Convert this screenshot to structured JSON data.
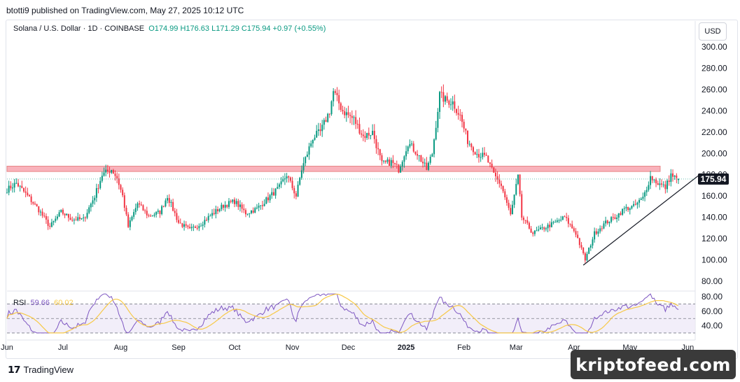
{
  "header": {
    "publisher_line": "btotti9 published on TradingView.com, May 27, 2025 10:12 UTC"
  },
  "legend": {
    "symbol": "Solana / U.S. Dollar · 1D · COINBASE",
    "ohlc": "O174.99  H176.63  L171.29  C175.94  +0.97 (+0.55%)"
  },
  "currency_button": "USD",
  "price_label": "175.94",
  "rsi_legend": {
    "name": "RSI",
    "rsi": "59.66",
    "ma": "60.02"
  },
  "footer": {
    "brand": "TradingView",
    "watermark": "kriptofeed.com"
  },
  "colors": {
    "up": "#089981",
    "down": "#f23645",
    "zone": "#f8a5b0",
    "rsi": "#7e57c2",
    "rsi_ma": "#f7c948",
    "rsi_band": "#ede7f6"
  },
  "chart_data": {
    "type": "candlestick",
    "title": "Solana / U.S. Dollar · 1D · COINBASE",
    "y_ticks": [
      80,
      100,
      120,
      140,
      160,
      180,
      200,
      220,
      240,
      260,
      280,
      300
    ],
    "ylim": [
      72,
      306
    ],
    "x_ticks": [
      "Jun",
      "Jul",
      "Aug",
      "Sep",
      "Oct",
      "Nov",
      "Dec",
      "2025",
      "Feb",
      "Mar",
      "Apr",
      "May",
      "Jun"
    ],
    "x_range": [
      "2024-06-01",
      "2025-06-05"
    ],
    "resistance_zone": [
      183,
      188
    ],
    "trendline": {
      "from": {
        "date": "2025-04-06",
        "price": 95
      },
      "to": {
        "date": "2025-06-01",
        "price": 179
      }
    },
    "close_path": [
      {
        "date": "2024-06-01",
        "close": 166
      },
      {
        "date": "2024-06-06",
        "close": 172
      },
      {
        "date": "2024-06-12",
        "close": 160
      },
      {
        "date": "2024-06-18",
        "close": 147
      },
      {
        "date": "2024-06-24",
        "close": 131
      },
      {
        "date": "2024-06-30",
        "close": 145
      },
      {
        "date": "2024-07-06",
        "close": 138
      },
      {
        "date": "2024-07-12",
        "close": 138
      },
      {
        "date": "2024-07-18",
        "close": 160
      },
      {
        "date": "2024-07-22",
        "close": 180
      },
      {
        "date": "2024-07-27",
        "close": 185
      },
      {
        "date": "2024-07-30",
        "close": 177
      },
      {
        "date": "2024-08-02",
        "close": 160
      },
      {
        "date": "2024-08-05",
        "close": 131
      },
      {
        "date": "2024-08-10",
        "close": 153
      },
      {
        "date": "2024-08-16",
        "close": 141
      },
      {
        "date": "2024-08-22",
        "close": 145
      },
      {
        "date": "2024-08-26",
        "close": 160
      },
      {
        "date": "2024-09-01",
        "close": 135
      },
      {
        "date": "2024-09-07",
        "close": 128
      },
      {
        "date": "2024-09-13",
        "close": 134
      },
      {
        "date": "2024-09-19",
        "close": 143
      },
      {
        "date": "2024-09-25",
        "close": 151
      },
      {
        "date": "2024-10-01",
        "close": 155
      },
      {
        "date": "2024-10-07",
        "close": 144
      },
      {
        "date": "2024-10-13",
        "close": 148
      },
      {
        "date": "2024-10-19",
        "close": 158
      },
      {
        "date": "2024-10-25",
        "close": 168
      },
      {
        "date": "2024-10-29",
        "close": 180
      },
      {
        "date": "2024-11-03",
        "close": 160
      },
      {
        "date": "2024-11-06",
        "close": 185
      },
      {
        "date": "2024-11-12",
        "close": 215
      },
      {
        "date": "2024-11-16",
        "close": 220
      },
      {
        "date": "2024-11-21",
        "close": 240
      },
      {
        "date": "2024-11-23",
        "close": 258
      },
      {
        "date": "2024-11-28",
        "close": 240
      },
      {
        "date": "2024-12-04",
        "close": 232
      },
      {
        "date": "2024-12-09",
        "close": 216
      },
      {
        "date": "2024-12-14",
        "close": 220
      },
      {
        "date": "2024-12-19",
        "close": 190
      },
      {
        "date": "2024-12-24",
        "close": 192
      },
      {
        "date": "2024-12-28",
        "close": 185
      },
      {
        "date": "2025-01-02",
        "close": 210
      },
      {
        "date": "2025-01-07",
        "close": 200
      },
      {
        "date": "2025-01-12",
        "close": 185
      },
      {
        "date": "2025-01-15",
        "close": 200
      },
      {
        "date": "2025-01-19",
        "close": 255
      },
      {
        "date": "2025-01-22",
        "close": 250
      },
      {
        "date": "2025-01-26",
        "close": 248
      },
      {
        "date": "2025-01-30",
        "close": 235
      },
      {
        "date": "2025-02-03",
        "close": 212
      },
      {
        "date": "2025-02-08",
        "close": 200
      },
      {
        "date": "2025-02-13",
        "close": 196
      },
      {
        "date": "2025-02-17",
        "close": 180
      },
      {
        "date": "2025-02-21",
        "close": 170
      },
      {
        "date": "2025-02-26",
        "close": 142
      },
      {
        "date": "2025-03-02",
        "close": 178
      },
      {
        "date": "2025-03-04",
        "close": 140
      },
      {
        "date": "2025-03-10",
        "close": 125
      },
      {
        "date": "2025-03-16",
        "close": 130
      },
      {
        "date": "2025-03-22",
        "close": 135
      },
      {
        "date": "2025-03-27",
        "close": 140
      },
      {
        "date": "2025-04-02",
        "close": 125
      },
      {
        "date": "2025-04-07",
        "close": 100
      },
      {
        "date": "2025-04-12",
        "close": 125
      },
      {
        "date": "2025-04-18",
        "close": 135
      },
      {
        "date": "2025-04-23",
        "close": 140
      },
      {
        "date": "2025-04-28",
        "close": 148
      },
      {
        "date": "2025-05-03",
        "close": 150
      },
      {
        "date": "2025-05-08",
        "close": 158
      },
      {
        "date": "2025-05-12",
        "close": 178
      },
      {
        "date": "2025-05-16",
        "close": 172
      },
      {
        "date": "2025-05-20",
        "close": 168
      },
      {
        "date": "2025-05-23",
        "close": 180
      },
      {
        "date": "2025-05-26",
        "close": 176
      },
      {
        "date": "2025-05-27",
        "close": 175.94
      }
    ],
    "last_candle": {
      "open": 174.99,
      "high": 176.63,
      "low": 171.29,
      "close": 175.94
    },
    "rsi": {
      "ticks": [
        40,
        60,
        80
      ],
      "ylim": [
        28,
        86
      ],
      "bands": [
        30,
        70
      ],
      "value": 59.66,
      "ma": 60.02
    }
  }
}
